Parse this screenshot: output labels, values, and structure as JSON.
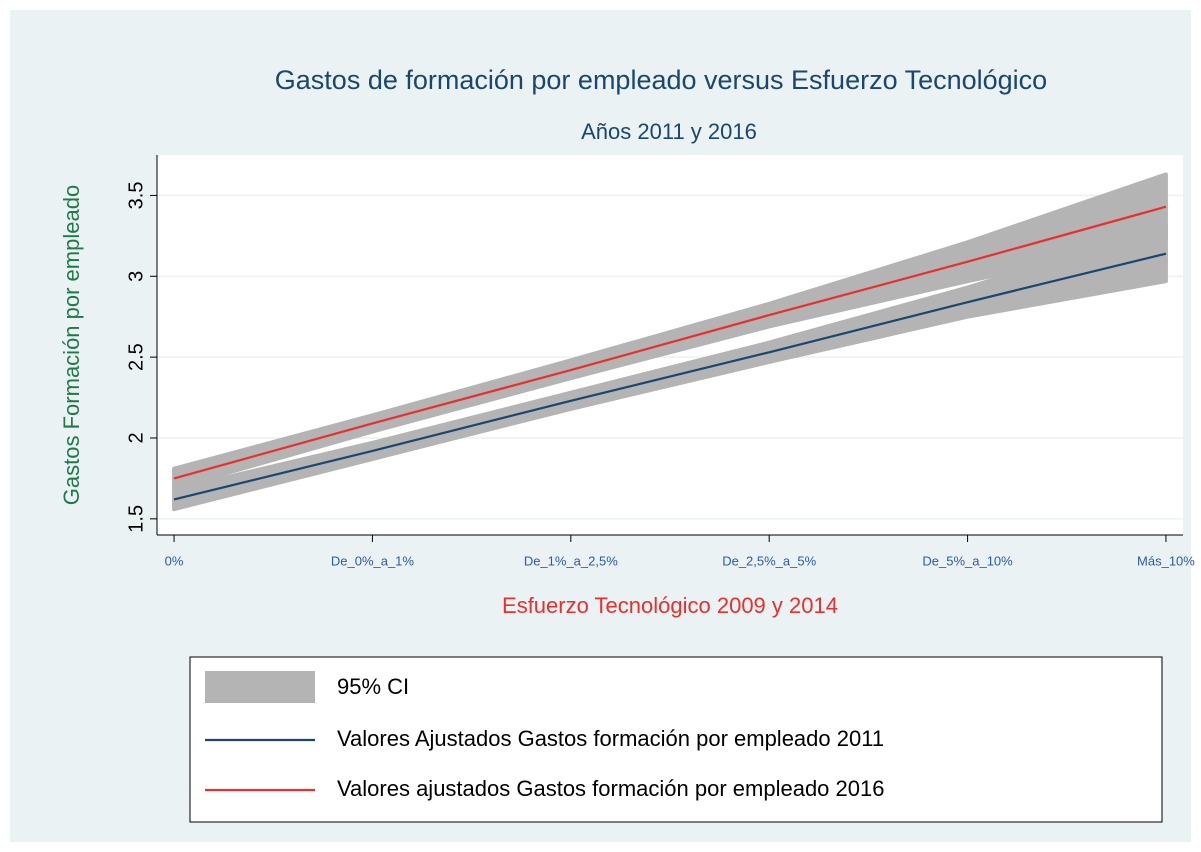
{
  "chart_data": {
    "type": "line",
    "title": "Gastos de formación por empleado versus Esfuerzo Tecnológico",
    "subtitle": "Años 2011 y 2016",
    "x_label": "Esfuerzo Tecnológico 2009 y 2014",
    "y_label": "Gastos Formación por empleado",
    "x": [
      1,
      2,
      3,
      4,
      5,
      6
    ],
    "xlim": [
      0.914,
      6.086
    ],
    "xticks": [
      {
        "value": 1,
        "label": "0%"
      },
      {
        "value": 2,
        "label": "De_0%_a_1%"
      },
      {
        "value": 3,
        "label": "De_1%_a_2,5%"
      },
      {
        "value": 4,
        "label": "De_2,5%_a_5%"
      },
      {
        "value": 5,
        "label": "De_5%_a_10%"
      },
      {
        "value": 6,
        "label": "Más_10%"
      }
    ],
    "ylim": [
      1.4,
      3.75
    ],
    "yticks": [
      1.5,
      2,
      2.5,
      3,
      3.5
    ],
    "grid": true,
    "ci_label": "95% CI",
    "ci_color": "#b4b4b4",
    "series": [
      {
        "name": "Valores Ajustados Gastos formación por empleado 2011",
        "color": "#1a476f",
        "values": [
          1.62,
          1.92,
          2.23,
          2.53,
          2.84,
          3.14
        ],
        "lower": [
          1.56,
          1.87,
          2.18,
          2.47,
          2.75,
          2.97
        ],
        "upper": [
          1.68,
          1.97,
          2.28,
          2.59,
          2.93,
          3.31
        ]
      },
      {
        "name": "Valores ajustados Gastos formación por empleado 2016",
        "color": "#e8302c",
        "values": [
          1.75,
          2.09,
          2.42,
          2.76,
          3.09,
          3.43
        ],
        "lower": [
          1.69,
          2.04,
          2.37,
          2.69,
          2.97,
          3.23
        ],
        "upper": [
          1.81,
          2.14,
          2.48,
          2.83,
          3.21,
          3.63
        ]
      }
    ]
  }
}
